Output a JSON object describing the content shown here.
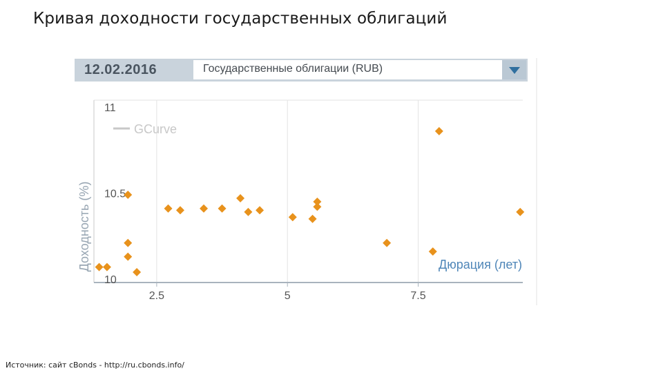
{
  "slide": {
    "title": "Кривая доходности государственных облигаций",
    "source": "Источник: сайт cBonds - http://ru.cbonds.info/"
  },
  "panel": {
    "date": "12.02.2016",
    "selector_value": "Государственные облигации (RUB)"
  },
  "chart_data": {
    "type": "scatter",
    "ylabel": "Доходность (%)",
    "xlabel": "Дюрация (лет)",
    "legend": {
      "label": "GCurve",
      "placement": "top-left"
    },
    "xlim": [
      1.3,
      9.5
    ],
    "ylim": [
      9.98,
      11.04
    ],
    "x_ticks": [
      2.5,
      5,
      7.5
    ],
    "x_tick_labels": [
      "2.5",
      "5",
      "7.5"
    ],
    "y_ticks": [
      10,
      10.5,
      11
    ],
    "y_tick_labels": [
      "10",
      "10.5",
      "11"
    ],
    "grid": true,
    "marker_color": "#e8921c",
    "points": [
      {
        "x": 1.4,
        "y": 10.07
      },
      {
        "x": 1.55,
        "y": 10.07
      },
      {
        "x": 1.95,
        "y": 10.49
      },
      {
        "x": 1.95,
        "y": 10.21
      },
      {
        "x": 1.95,
        "y": 10.13
      },
      {
        "x": 2.12,
        "y": 10.04
      },
      {
        "x": 2.72,
        "y": 10.41
      },
      {
        "x": 2.95,
        "y": 10.4
      },
      {
        "x": 3.4,
        "y": 10.41
      },
      {
        "x": 3.75,
        "y": 10.41
      },
      {
        "x": 4.1,
        "y": 10.47
      },
      {
        "x": 4.25,
        "y": 10.39
      },
      {
        "x": 4.47,
        "y": 10.4
      },
      {
        "x": 5.1,
        "y": 10.36
      },
      {
        "x": 5.48,
        "y": 10.35
      },
      {
        "x": 5.57,
        "y": 10.45
      },
      {
        "x": 5.57,
        "y": 10.42
      },
      {
        "x": 6.9,
        "y": 10.21
      },
      {
        "x": 7.78,
        "y": 10.16
      },
      {
        "x": 7.9,
        "y": 10.86
      },
      {
        "x": 9.45,
        "y": 10.39
      }
    ]
  }
}
